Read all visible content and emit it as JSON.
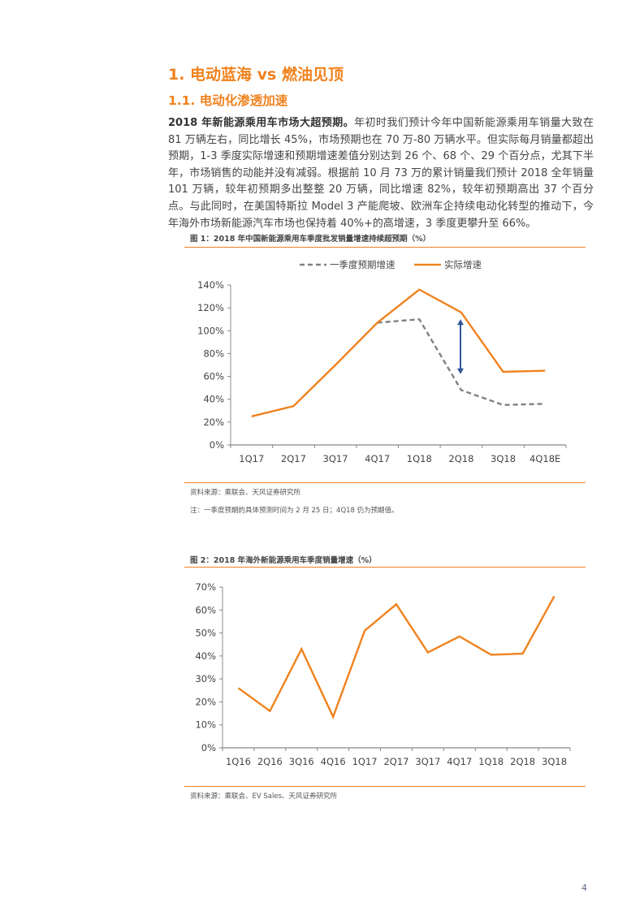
{
  "heading1": "1. 电动蓝海 vs 燃油见顶",
  "heading2": "1.1. 电动化渗透加速",
  "paragraph": {
    "bold_lead": "2018 年新能源乘用车市场大超预期。",
    "text": "年初时我们预计今年中国新能源乘用车销量大致在 81 万辆左右，同比增长 45%，市场预期也在 70 万-80 万辆水平。但实际每月销量都超出预期，1-3 季度实际增速和预期增速差值分别达到 26 个、68 个、29 个百分点，尤其下半年，市场销售的动能并没有减弱。根据前 10 月 73 万的累计销量我们预计 2018 全年销量 101 万辆，较年初预期多出整整 20 万辆，同比增速 82%，较年初预期高出 37 个百分点。与此同时，在美国特斯拉 Model 3 产能爬坡、欧洲车企持续电动化转型的推动下，今年海外市场新能源汽车市场也保持着 40%+的高增速，3 季度更攀升至 66%。"
  },
  "figure1": {
    "title": "图 1：2018 年中国新能源乘用车季度批发销量增速持续超预期（%）",
    "source": "资料来源：乘联会、天风证券研究所",
    "note": "注：一季度预期的具体预测时间为 2 月 25 日；4Q18 仍为预期值。"
  },
  "figure2": {
    "title": "图 2：2018 年海外新能源乘用车季度销量增速（%）",
    "source": "资料来源：乘联会、EV Sales、天风证券研究所"
  },
  "page_number": "4",
  "colors": {
    "accent": "#f0821e",
    "dashed": "#808080",
    "arrow": "#2f5597"
  },
  "chart_data": [
    {
      "type": "line",
      "title": "2018 年中国新能源乘用车季度批发销量增速持续超预期（%）",
      "categories": [
        "1Q17",
        "2Q17",
        "3Q17",
        "4Q17",
        "1Q18",
        "2Q18",
        "3Q18",
        "4Q18E"
      ],
      "series": [
        {
          "name": "一季度预期增速",
          "style": "dashed",
          "values": [
            null,
            null,
            null,
            107,
            110,
            48,
            35,
            36
          ]
        },
        {
          "name": "实际增速",
          "style": "solid",
          "values": [
            25,
            34,
            70,
            107,
            136,
            116,
            64,
            65
          ]
        }
      ],
      "yticks": [
        "0%",
        "20%",
        "40%",
        "60%",
        "80%",
        "100%",
        "120%",
        "140%"
      ],
      "ylim": [
        0,
        140
      ],
      "legend": "top",
      "annotation": "double arrow at 2Q18 between expected and actual",
      "grid": false
    },
    {
      "type": "line",
      "title": "2018 年海外新能源乘用车季度销量增速（%）",
      "categories": [
        "1Q16",
        "2Q16",
        "3Q16",
        "4Q16",
        "1Q17",
        "2Q17",
        "3Q17",
        "4Q17",
        "1Q18",
        "2Q18",
        "3Q18"
      ],
      "series": [
        {
          "name": "海外增速",
          "values": [
            26,
            16,
            43,
            13.5,
            51,
            62.5,
            41.5,
            48.5,
            40.5,
            41,
            66
          ]
        }
      ],
      "yticks": [
        "0%",
        "10%",
        "20%",
        "30%",
        "40%",
        "50%",
        "60%",
        "70%"
      ],
      "ylim": [
        0,
        70
      ],
      "grid": false
    }
  ]
}
